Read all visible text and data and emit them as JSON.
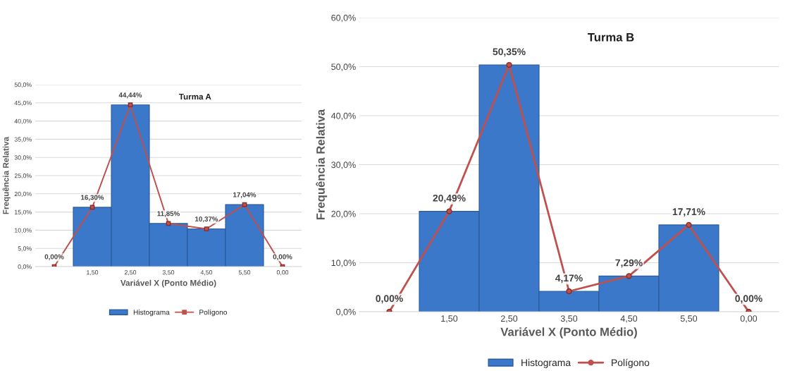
{
  "chart_data": [
    {
      "type": "bar",
      "title": "Turma A",
      "xlabel": "Variável X (Ponto Médio)",
      "ylabel": "Frequência Relativa",
      "categories": [
        null,
        "1,50",
        "2,50",
        "3,50",
        "4,50",
        "5,50",
        "0,00"
      ],
      "series": [
        {
          "name": "Histograma",
          "color": "#3b78c9",
          "values": [
            null,
            16.3,
            44.44,
            11.85,
            10.37,
            17.04,
            null
          ]
        },
        {
          "name": "Polígono",
          "type": "line",
          "color": "#c0504d",
          "marker": "square",
          "values": [
            0,
            16.3,
            44.44,
            11.85,
            10.37,
            17.04,
            0
          ],
          "value_labels": [
            "0,00%",
            "16,30%",
            "44,44%",
            "11,85%",
            "10,37%",
            "17,04%",
            "0,00%"
          ]
        }
      ],
      "ylim": [
        0,
        50
      ],
      "yticks": [
        {
          "value": 0,
          "label": "0,0%"
        },
        {
          "value": 5,
          "label": "5,0%"
        },
        {
          "value": 10,
          "label": "10,0%"
        },
        {
          "value": 15,
          "label": "15,0%"
        },
        {
          "value": 20,
          "label": "20,0%"
        },
        {
          "value": 25,
          "label": "25,0%"
        },
        {
          "value": 30,
          "label": "30,0%"
        },
        {
          "value": 35,
          "label": "35,0%"
        },
        {
          "value": 40,
          "label": "40,0%"
        },
        {
          "value": 45,
          "label": "45,0%"
        },
        {
          "value": 50,
          "label": "50,0%"
        }
      ],
      "grid": "y",
      "legend": "bottom"
    },
    {
      "type": "bar",
      "title": "Turma B",
      "xlabel": "Variável X (Ponto Médio)",
      "ylabel": "Frequência Relativa",
      "categories": [
        null,
        "1,50",
        "2,50",
        "3,50",
        "4,50",
        "5,50",
        "0,00"
      ],
      "series": [
        {
          "name": "Histograma",
          "color": "#3b78c9",
          "values": [
            null,
            20.49,
            50.35,
            4.17,
            7.29,
            17.71,
            null
          ]
        },
        {
          "name": "Polígono",
          "type": "line",
          "color": "#c0504d",
          "marker": "circle",
          "values": [
            0,
            20.49,
            50.35,
            4.17,
            7.29,
            17.71,
            0
          ],
          "value_labels": [
            "0,00%",
            "20,49%",
            "50,35%",
            "4,17%",
            "7,29%",
            "17,71%",
            "0,00%"
          ]
        }
      ],
      "ylim": [
        0,
        60
      ],
      "yticks": [
        {
          "value": 0,
          "label": "0,0%"
        },
        {
          "value": 10,
          "label": "10,0%"
        },
        {
          "value": 20,
          "label": "20,0%"
        },
        {
          "value": 30,
          "label": "30,0%"
        },
        {
          "value": 40,
          "label": "40,0%"
        },
        {
          "value": 50,
          "label": "50,0%"
        },
        {
          "value": 60,
          "label": "60,0%"
        }
      ],
      "grid": "y",
      "legend": "bottom"
    }
  ]
}
